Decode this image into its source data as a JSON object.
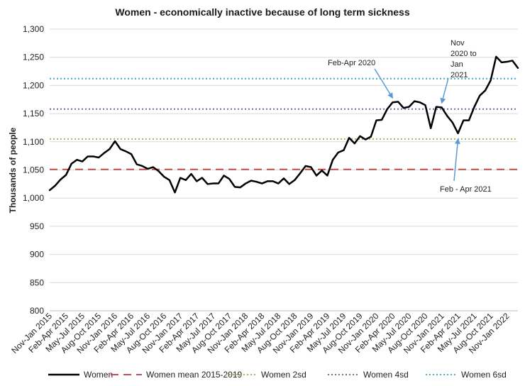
{
  "chart_data": {
    "type": "line",
    "title": "Women - economically inactive because of long term sickness",
    "ylabel": "Thousands of people",
    "xlabel": "",
    "ylim": [
      800,
      1300
    ],
    "yticks": [
      800,
      850,
      900,
      950,
      1000,
      1050,
      1100,
      1150,
      1200,
      1250,
      1300
    ],
    "ytick_labels": [
      "800",
      "850",
      "900",
      "950",
      "1,000",
      "1,050",
      "1,100",
      "1,150",
      "1,200",
      "1,250",
      "1,300"
    ],
    "grid": "horizontal",
    "legend_position": "bottom",
    "x": [
      "Nov-Jan 2015",
      "Dec-Feb 2015",
      "Jan-Mar 2015",
      "Feb-Apr 2015",
      "Mar-May 2015",
      "Apr-Jun 2015",
      "May-Jul 2015",
      "Jun-Aug 2015",
      "Jul-Sep 2015",
      "Aug-Oct 2015",
      "Sep-Nov 2015",
      "Oct-Dec 2015",
      "Nov-Jan 2016",
      "Dec-Feb 2016",
      "Jan-Mar 2016",
      "Feb-Apr 2016",
      "Mar-May 2016",
      "Apr-Jun 2016",
      "May-Jul 2016",
      "Jun-Aug 2016",
      "Jul-Sep 2016",
      "Aug-Oct 2016",
      "Sep-Nov 2016",
      "Oct-Dec 2016",
      "Nov-Jan 2017",
      "Dec-Feb 2017",
      "Jan-Mar 2017",
      "Feb-Apr 2017",
      "Mar-May 2017",
      "Apr-Jun 2017",
      "May-Jul 2017",
      "Jun-Aug 2017",
      "Jul-Sep 2017",
      "Aug-Oct 2017",
      "Sep-Nov 2017",
      "Oct-Dec 2017",
      "Nov-Jan 2018",
      "Dec-Feb 2018",
      "Jan-Mar 2018",
      "Feb-Apr 2018",
      "Mar-May 2018",
      "Apr-Jun 2018",
      "May-Jul 2018",
      "Jun-Aug 2018",
      "Jul-Sep 2018",
      "Aug-Oct 2018",
      "Sep-Nov 2018",
      "Oct-Dec 2018",
      "Nov-Jan 2019",
      "Dec-Feb 2019",
      "Jan-Mar 2019",
      "Feb-Apr 2019",
      "Mar-May 2019",
      "Apr-Jun 2019",
      "May-Jul 2019",
      "Jun-Aug 2019",
      "Jul-Sep 2019",
      "Aug-Oct 2019",
      "Sep-Nov 2019",
      "Oct-Dec 2019",
      "Nov-Jan 2020",
      "Dec-Feb 2020",
      "Jan-Mar 2020",
      "Feb-Apr 2020",
      "Mar-May 2020",
      "Apr-Jun 2020",
      "May-Jul 2020",
      "Jun-Aug 2020",
      "Jul-Sep 2020",
      "Aug-Oct 2020",
      "Sep-Nov 2020",
      "Oct-Dec 2020",
      "Nov-Jan 2021",
      "Dec-Feb 2021",
      "Jan-Mar 2021",
      "Feb-Apr 2021",
      "Mar-May 2021",
      "Apr-Jun 2021",
      "May-Jul 2021",
      "Jun-Aug 2021",
      "Jul-Sep 2021",
      "Aug-Oct 2021",
      "Sep-Nov 2021",
      "Oct-Dec 2021",
      "Nov-Jan 2022",
      "Dec-Feb 2022",
      "Jan-Mar 2022"
    ],
    "xtick_labels": [
      "Nov-Jan 2015",
      "Feb-Apr 2015",
      "May-Jul 2015",
      "Aug-Oct 2015",
      "Nov-Jan 2016",
      "Feb-Apr 2016",
      "May-Jul 2016",
      "Aug-Oct 2016",
      "Nov-Jan 2017",
      "Feb-Apr 2017",
      "May-Jul 2017",
      "Aug-Oct 2017",
      "Nov-Jan 2018",
      "Feb-Apr 2018",
      "May-Jul 2018",
      "Aug-Oct 2018",
      "Nov-Jan 2019",
      "Feb-Apr 2019",
      "May-Jul 2019",
      "Aug-Oct 2019",
      "Nov-Jan 2020",
      "Feb-Apr 2020",
      "May-Jul 2020",
      "Aug-Oct 2020",
      "Nov-Jan 2021",
      "Feb-Apr 2021",
      "May-Jul 2021",
      "Aug-Oct 2021",
      "Nov-Jan 2022"
    ],
    "series": [
      {
        "name": "Women",
        "style": "solid",
        "color": "#000000",
        "values": [
          1014,
          1022,
          1033,
          1041,
          1061,
          1068,
          1065,
          1074,
          1074,
          1072,
          1080,
          1087,
          1101,
          1087,
          1083,
          1078,
          1060,
          1057,
          1052,
          1055,
          1048,
          1038,
          1032,
          1010,
          1036,
          1032,
          1043,
          1030,
          1036,
          1025,
          1026,
          1026,
          1040,
          1034,
          1020,
          1019,
          1026,
          1031,
          1029,
          1026,
          1030,
          1030,
          1026,
          1035,
          1025,
          1032,
          1044,
          1057,
          1055,
          1040,
          1049,
          1040,
          1068,
          1081,
          1085,
          1107,
          1097,
          1110,
          1104,
          1109,
          1138,
          1139,
          1158,
          1170,
          1171,
          1160,
          1162,
          1172,
          1170,
          1165,
          1124,
          1162,
          1161,
          1146,
          1134,
          1115,
          1138,
          1138,
          1162,
          1182,
          1191,
          1209,
          1251,
          1241,
          1242,
          1244,
          1231
        ]
      },
      {
        "name": "Women mean 2015-2019",
        "style": "dashed",
        "color": "#c0504d",
        "constant": 1051
      },
      {
        "name": "Women 2sd",
        "style": "dotted",
        "color": "#9bbb59",
        "constant": 1105
      },
      {
        "name": "Women 4sd",
        "style": "dotted",
        "color": "#8064a2",
        "constant": 1158
      },
      {
        "name": "Women 6sd",
        "style": "dotted",
        "color": "#4bacc6",
        "constant": 1212
      }
    ],
    "annotations": [
      {
        "text": [
          "Feb-Apr 2020"
        ],
        "points_to": "Feb-Apr 2020"
      },
      {
        "text": [
          "Nov",
          "2020 to",
          "Jan",
          "2021"
        ],
        "points_to": "Nov-Jan 2021"
      },
      {
        "text": [
          "Feb - Apr 2021"
        ],
        "points_to": "Feb-Apr 2021"
      }
    ],
    "annotation_arrow_color": "#5b9bd5"
  }
}
